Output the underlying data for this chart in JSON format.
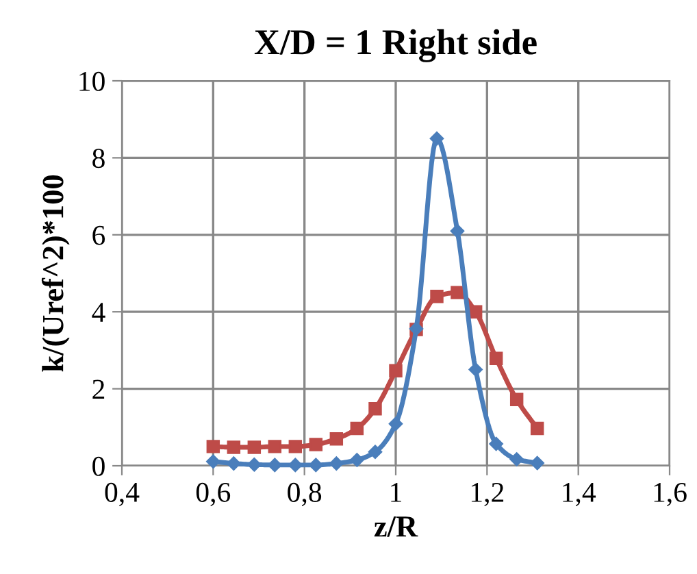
{
  "chart_data": {
    "type": "line",
    "title": "X/D = 1 Right side",
    "xlabel": "z/R",
    "ylabel": "k/(Uref^2)*100",
    "xlim": [
      0.4,
      1.6
    ],
    "xticks": [
      {
        "value": 0.4,
        "label": "0,4"
      },
      {
        "value": 0.6,
        "label": "0,6"
      },
      {
        "value": 0.8,
        "label": "0,8"
      },
      {
        "value": 1,
        "label": "1"
      },
      {
        "value": 1.2,
        "label": "1,2"
      },
      {
        "value": 1.4,
        "label": "1,4"
      },
      {
        "value": 1.6,
        "label": "1,6"
      }
    ],
    "ylim": [
      0,
      10
    ],
    "yticks": [
      0,
      2,
      4,
      6,
      8,
      10
    ],
    "grid": true,
    "line_style": "solid",
    "series": [
      {
        "color": "#4a7ebb",
        "marker": "diamond",
        "x": [
          0.6,
          0.645,
          0.69,
          0.735,
          0.78,
          0.825,
          0.87,
          0.915,
          0.955,
          1.0,
          1.045,
          1.09,
          1.135,
          1.175,
          1.22,
          1.265,
          1.31
        ],
        "values": [
          0.11,
          0.06,
          0.03,
          0.02,
          0.02,
          0.02,
          0.06,
          0.15,
          0.36,
          1.09,
          3.56,
          8.5,
          6.1,
          2.5,
          0.57,
          0.17,
          0.07
        ]
      },
      {
        "color": "#be4b48",
        "marker": "square",
        "x": [
          0.6,
          0.645,
          0.69,
          0.735,
          0.78,
          0.825,
          0.87,
          0.915,
          0.955,
          1.0,
          1.045,
          1.09,
          1.135,
          1.175,
          1.22,
          1.265,
          1.31
        ],
        "values": [
          0.5,
          0.48,
          0.48,
          0.5,
          0.5,
          0.55,
          0.7,
          0.97,
          1.48,
          2.47,
          3.54,
          4.4,
          4.5,
          4.0,
          2.79,
          1.72,
          0.97
        ]
      }
    ]
  }
}
